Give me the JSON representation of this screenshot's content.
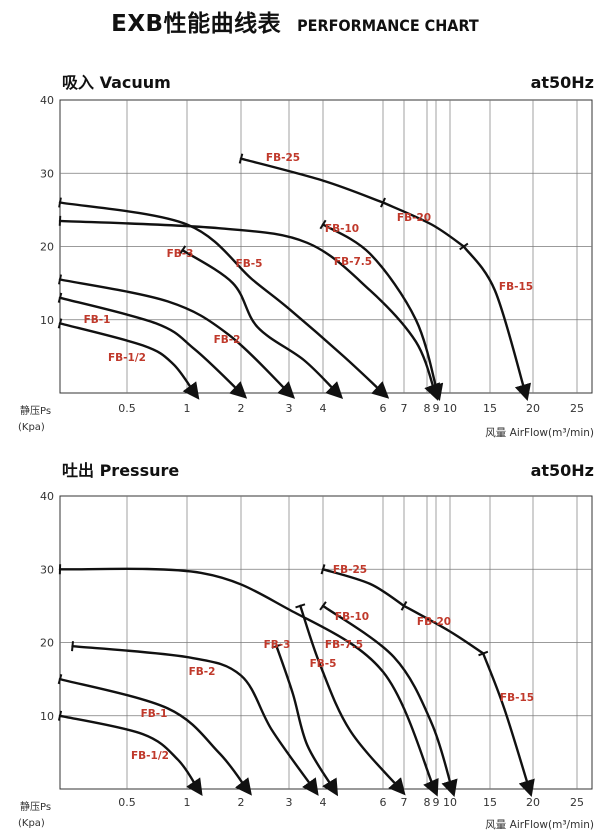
{
  "header": {
    "title_main": "EXB性能曲线表",
    "title_en": "PERFORMANCE CHART"
  },
  "colors": {
    "curve": "#111111",
    "label": "#c0392b",
    "grid": "#7a7a7a",
    "axis": "#333333"
  },
  "chart_data": [
    {
      "type": "line",
      "title": "吸入 Vacuum",
      "subtitle": "at50Hz",
      "xlabel": "风量 AirFlow(m³/min)",
      "ylabel": "静压Ps",
      "ylabel_unit": "(Kpa)",
      "ylim": [
        0,
        40
      ],
      "yticks": [
        "10",
        "20",
        "30",
        "40"
      ],
      "xticks": [
        "0.5",
        "1",
        "2",
        "3",
        "4",
        "6",
        "7",
        "8",
        "9",
        "10",
        "15",
        "20",
        "25"
      ],
      "x_scale": "log",
      "grid": true,
      "series": [
        {
          "name": "FB-1/2",
          "points": [
            [
              0.3,
              9.5
            ],
            [
              0.6,
              6.5
            ],
            [
              0.85,
              4
            ],
            [
              1.1,
              0
            ]
          ]
        },
        {
          "name": "FB-1",
          "points": [
            [
              0.3,
              13
            ],
            [
              0.7,
              9.5
            ],
            [
              1.1,
              6
            ],
            [
              2.0,
              0
            ]
          ]
        },
        {
          "name": "FB-2",
          "points": [
            [
              0.3,
              15.5
            ],
            [
              0.8,
              12.5
            ],
            [
              1.7,
              8
            ],
            [
              3.0,
              0
            ]
          ]
        },
        {
          "name": "FB-3",
          "points": [
            [
              0.95,
              19.5
            ],
            [
              1.8,
              15
            ],
            [
              2.3,
              9
            ],
            [
              3.4,
              4.5
            ],
            [
              4.4,
              0
            ]
          ]
        },
        {
          "name": "FB-5",
          "points": [
            [
              0.3,
              26
            ],
            [
              1.0,
              23
            ],
            [
              2.2,
              15.5
            ],
            [
              3.0,
              11.5
            ],
            [
              4.6,
              5
            ],
            [
              6.0,
              0
            ]
          ]
        },
        {
          "name": "FB-7.5",
          "points": [
            [
              0.3,
              23.5
            ],
            [
              1.5,
              22.5
            ],
            [
              3.5,
              20.5
            ],
            [
              5.5,
              14
            ],
            [
              7.5,
              7
            ],
            [
              8.9,
              0
            ]
          ]
        },
        {
          "name": "FB-10",
          "points": [
            [
              4.0,
              23
            ],
            [
              5.5,
              19
            ],
            [
              7.5,
              10
            ],
            [
              9.1,
              0
            ]
          ]
        },
        {
          "name": "FB-25",
          "points": [
            [
              2.0,
              32
            ],
            [
              4.0,
              29
            ],
            [
              6.0,
              26
            ]
          ]
        },
        {
          "name": "FB-20",
          "points": [
            [
              6.0,
              26
            ],
            [
              8.5,
              23
            ],
            [
              11.5,
              20
            ]
          ]
        },
        {
          "name": "FB-15",
          "points": [
            [
              11.5,
              20
            ],
            [
              15.5,
              14
            ],
            [
              19.0,
              0
            ]
          ]
        }
      ]
    },
    {
      "type": "line",
      "title": "吐出 Pressure",
      "subtitle": "at50Hz",
      "xlabel": "风量 AirFlow(m³/min)",
      "ylabel": "静压Ps",
      "ylabel_unit": "(Kpa)",
      "ylim": [
        0,
        40
      ],
      "yticks": [
        "10",
        "20",
        "30",
        "40"
      ],
      "xticks": [
        "0.5",
        "1",
        "2",
        "3",
        "4",
        "6",
        "7",
        "8",
        "9",
        "10",
        "15",
        "20",
        "25"
      ],
      "x_scale": "log",
      "grid": true,
      "series": [
        {
          "name": "FB-1/2",
          "points": [
            [
              0.3,
              10
            ],
            [
              0.6,
              7.5
            ],
            [
              0.9,
              4
            ],
            [
              1.15,
              0
            ]
          ]
        },
        {
          "name": "FB-1",
          "points": [
            [
              0.3,
              15
            ],
            [
              0.8,
              11
            ],
            [
              1.5,
              5
            ],
            [
              2.1,
              0
            ]
          ]
        },
        {
          "name": "FB-2",
          "points": [
            [
              0.33,
              19.5
            ],
            [
              1.0,
              18
            ],
            [
              2.0,
              15.5
            ],
            [
              2.6,
              8
            ],
            [
              3.7,
              0
            ]
          ]
        },
        {
          "name": "FB-3",
          "points": [
            [
              2.7,
              19.5
            ],
            [
              3.1,
              13
            ],
            [
              3.5,
              6
            ],
            [
              4.3,
              0
            ]
          ]
        },
        {
          "name": "FB-5",
          "points": [
            [
              3.3,
              25
            ],
            [
              3.9,
              17
            ],
            [
              4.8,
              8
            ],
            [
              6.8,
              0
            ]
          ]
        },
        {
          "name": "FB-7.5",
          "points": [
            [
              0.3,
              30
            ],
            [
              1.2,
              29.5
            ],
            [
              3.0,
              24.5
            ],
            [
              6.0,
              16
            ],
            [
              8.8,
              0
            ]
          ]
        },
        {
          "name": "FB-10",
          "points": [
            [
              4.0,
              25
            ],
            [
              6.5,
              18
            ],
            [
              8.5,
              9
            ],
            [
              10.2,
              0
            ]
          ]
        },
        {
          "name": "FB-25",
          "points": [
            [
              4.0,
              30
            ],
            [
              5.5,
              28
            ],
            [
              7.0,
              25
            ]
          ]
        },
        {
          "name": "FB-20",
          "points": [
            [
              7.0,
              25
            ],
            [
              10.0,
              21.5
            ],
            [
              14.0,
              18.5
            ]
          ]
        },
        {
          "name": "FB-15",
          "points": [
            [
              14.0,
              18.5
            ],
            [
              16.5,
              11
            ],
            [
              19.5,
              0
            ]
          ]
        }
      ]
    }
  ]
}
